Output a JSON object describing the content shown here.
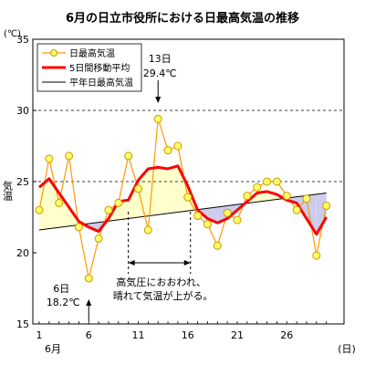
{
  "chart_data": {
    "type": "line",
    "title": "6月の日立市役所における日最高気温の推移",
    "unit_label": "(℃)",
    "ylabel": "気温",
    "xlabel_unit": "(日)",
    "month_label": "6月",
    "ylim": [
      15,
      35
    ],
    "yticks": [
      15,
      20,
      25,
      30,
      35
    ],
    "xlim": [
      1,
      30
    ],
    "xticks": [
      1,
      6,
      11,
      16,
      21,
      26
    ],
    "grid": "dashed at 25 and 30",
    "legend_position": "top-left",
    "colors": {
      "daily_marker_fill": "#ffff66",
      "daily_marker_edge": "#cc9900",
      "daily_line": "#ff9900",
      "moving_avg": "#ff0000",
      "normal": "#000000",
      "fill_above_normal": "#ffffcc",
      "fill_below_normal": "#ccccee"
    },
    "series": [
      {
        "name": "日最高気温",
        "x": [
          1,
          2,
          3,
          4,
          5,
          6,
          7,
          8,
          9,
          10,
          11,
          12,
          13,
          14,
          15,
          16,
          17,
          18,
          19,
          20,
          21,
          22,
          23,
          24,
          25,
          26,
          27,
          28,
          29,
          30
        ],
        "values": [
          23.0,
          26.6,
          23.5,
          26.8,
          21.8,
          18.2,
          21.0,
          23.0,
          23.5,
          26.8,
          24.5,
          21.6,
          29.4,
          27.2,
          27.5,
          23.9,
          22.6,
          22.0,
          20.5,
          22.8,
          22.3,
          24.0,
          24.6,
          25.0,
          25.0,
          24.0,
          23.0,
          23.8,
          19.8,
          23.3
        ]
      },
      {
        "name": "5日間移動平均",
        "x": [
          1,
          2,
          3,
          4,
          5,
          6,
          7,
          8,
          9,
          10,
          11,
          12,
          13,
          14,
          15,
          16,
          17,
          18,
          19,
          20,
          21,
          22,
          23,
          24,
          25,
          26,
          27,
          28,
          29,
          30
        ],
        "values": [
          24.6,
          25.2,
          24.2,
          23.2,
          22.2,
          21.8,
          21.5,
          22.4,
          23.6,
          23.7,
          25.1,
          25.9,
          26.0,
          25.9,
          26.1,
          24.7,
          23.0,
          22.4,
          22.1,
          22.4,
          23.0,
          23.6,
          24.2,
          24.3,
          24.1,
          23.7,
          23.5,
          22.4,
          21.3,
          22.5
        ]
      },
      {
        "name": "平年日最高気温",
        "x": [
          1,
          30
        ],
        "values": [
          21.6,
          24.2
        ]
      }
    ],
    "annotations": [
      {
        "line1": "13日",
        "line2": "29.4℃",
        "day": 13,
        "arrow": "down"
      },
      {
        "line1": "6日",
        "line2": "18.2℃",
        "day": 6,
        "arrow": "up"
      },
      {
        "line1": "高気圧におおわれ、",
        "line2": "晴れて気温が上がる。",
        "from_day": 10,
        "to_day": 16
      }
    ]
  }
}
